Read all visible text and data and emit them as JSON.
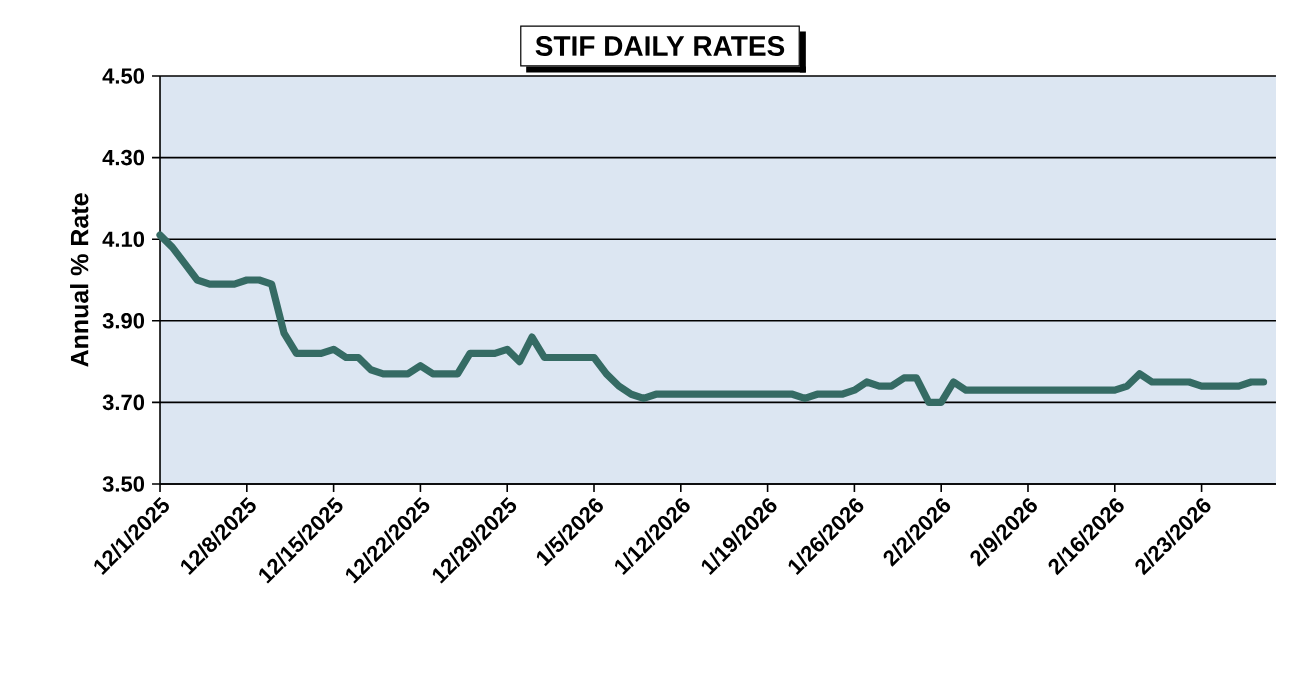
{
  "chart_data": {
    "type": "line",
    "title": "STIF DAILY RATES",
    "ylabel": "Annual % Rate",
    "color": "#356b64",
    "grid": "y",
    "xlim": [
      "2025-12-01",
      "2026-03-01"
    ],
    "ylim": [
      3.5,
      4.5
    ],
    "yticks": [
      {
        "value": 3.5,
        "label": "3.50"
      },
      {
        "value": 3.7,
        "label": "3.70"
      },
      {
        "value": 3.9,
        "label": "3.90"
      },
      {
        "value": 4.1,
        "label": "4.10"
      },
      {
        "value": 4.3,
        "label": "4.30"
      },
      {
        "value": 4.5,
        "label": "4.50"
      }
    ],
    "xticks": [
      {
        "value": "2025-12-01",
        "label": "12/1/2025"
      },
      {
        "value": "2025-12-08",
        "label": "12/8/2025"
      },
      {
        "value": "2025-12-15",
        "label": "12/15/2025"
      },
      {
        "value": "2025-12-22",
        "label": "12/22/2025"
      },
      {
        "value": "2025-12-29",
        "label": "12/29/2025"
      },
      {
        "value": "2026-01-05",
        "label": "1/5/2026"
      },
      {
        "value": "2026-01-12",
        "label": "1/12/2026"
      },
      {
        "value": "2026-01-19",
        "label": "1/19/2026"
      },
      {
        "value": "2026-01-26",
        "label": "1/26/2026"
      },
      {
        "value": "2026-02-02",
        "label": "2/2/2026"
      },
      {
        "value": "2026-02-09",
        "label": "2/9/2026"
      },
      {
        "value": "2026-02-16",
        "label": "2/16/2026"
      },
      {
        "value": "2026-02-23",
        "label": "2/23/2026"
      }
    ],
    "x": [
      "2025-12-01",
      "2025-12-02",
      "2025-12-03",
      "2025-12-04",
      "2025-12-05",
      "2025-12-06",
      "2025-12-07",
      "2025-12-08",
      "2025-12-09",
      "2025-12-10",
      "2025-12-11",
      "2025-12-12",
      "2025-12-13",
      "2025-12-14",
      "2025-12-15",
      "2025-12-16",
      "2025-12-17",
      "2025-12-18",
      "2025-12-19",
      "2025-12-20",
      "2025-12-21",
      "2025-12-22",
      "2025-12-23",
      "2025-12-24",
      "2025-12-25",
      "2025-12-26",
      "2025-12-27",
      "2025-12-28",
      "2025-12-29",
      "2025-12-30",
      "2025-12-31",
      "2026-01-01",
      "2026-01-02",
      "2026-01-03",
      "2026-01-04",
      "2026-01-05",
      "2026-01-06",
      "2026-01-07",
      "2026-01-08",
      "2026-01-09",
      "2026-01-10",
      "2026-01-11",
      "2026-01-12",
      "2026-01-13",
      "2026-01-14",
      "2026-01-15",
      "2026-01-16",
      "2026-01-17",
      "2026-01-18",
      "2026-01-19",
      "2026-01-20",
      "2026-01-21",
      "2026-01-22",
      "2026-01-23",
      "2026-01-24",
      "2026-01-25",
      "2026-01-26",
      "2026-01-27",
      "2026-01-28",
      "2026-01-29",
      "2026-01-30",
      "2026-01-31",
      "2026-02-01",
      "2026-02-02",
      "2026-02-03",
      "2026-02-04",
      "2026-02-05",
      "2026-02-06",
      "2026-02-07",
      "2026-02-08",
      "2026-02-09",
      "2026-02-10",
      "2026-02-11",
      "2026-02-12",
      "2026-02-13",
      "2026-02-14",
      "2026-02-15",
      "2026-02-16",
      "2026-02-17",
      "2026-02-18",
      "2026-02-19",
      "2026-02-20",
      "2026-02-21",
      "2026-02-22",
      "2026-02-23",
      "2026-02-24",
      "2026-02-25",
      "2026-02-26",
      "2026-02-27",
      "2026-02-28"
    ],
    "values": [
      4.11,
      4.08,
      4.04,
      4.0,
      3.99,
      3.99,
      3.99,
      4.0,
      4.0,
      3.99,
      3.87,
      3.82,
      3.82,
      3.82,
      3.83,
      3.81,
      3.81,
      3.78,
      3.77,
      3.77,
      3.77,
      3.79,
      3.77,
      3.77,
      3.77,
      3.82,
      3.82,
      3.82,
      3.83,
      3.8,
      3.86,
      3.81,
      3.81,
      3.81,
      3.81,
      3.81,
      3.77,
      3.74,
      3.72,
      3.71,
      3.72,
      3.72,
      3.72,
      3.72,
      3.72,
      3.72,
      3.72,
      3.72,
      3.72,
      3.72,
      3.72,
      3.72,
      3.71,
      3.72,
      3.72,
      3.72,
      3.73,
      3.75,
      3.74,
      3.74,
      3.76,
      3.76,
      3.7,
      3.7,
      3.75,
      3.73,
      3.73,
      3.73,
      3.73,
      3.73,
      3.73,
      3.73,
      3.73,
      3.73,
      3.73,
      3.73,
      3.73,
      3.73,
      3.74,
      3.77,
      3.75,
      3.75,
      3.75,
      3.75,
      3.74,
      3.74,
      3.74,
      3.74,
      3.75,
      3.75
    ]
  }
}
